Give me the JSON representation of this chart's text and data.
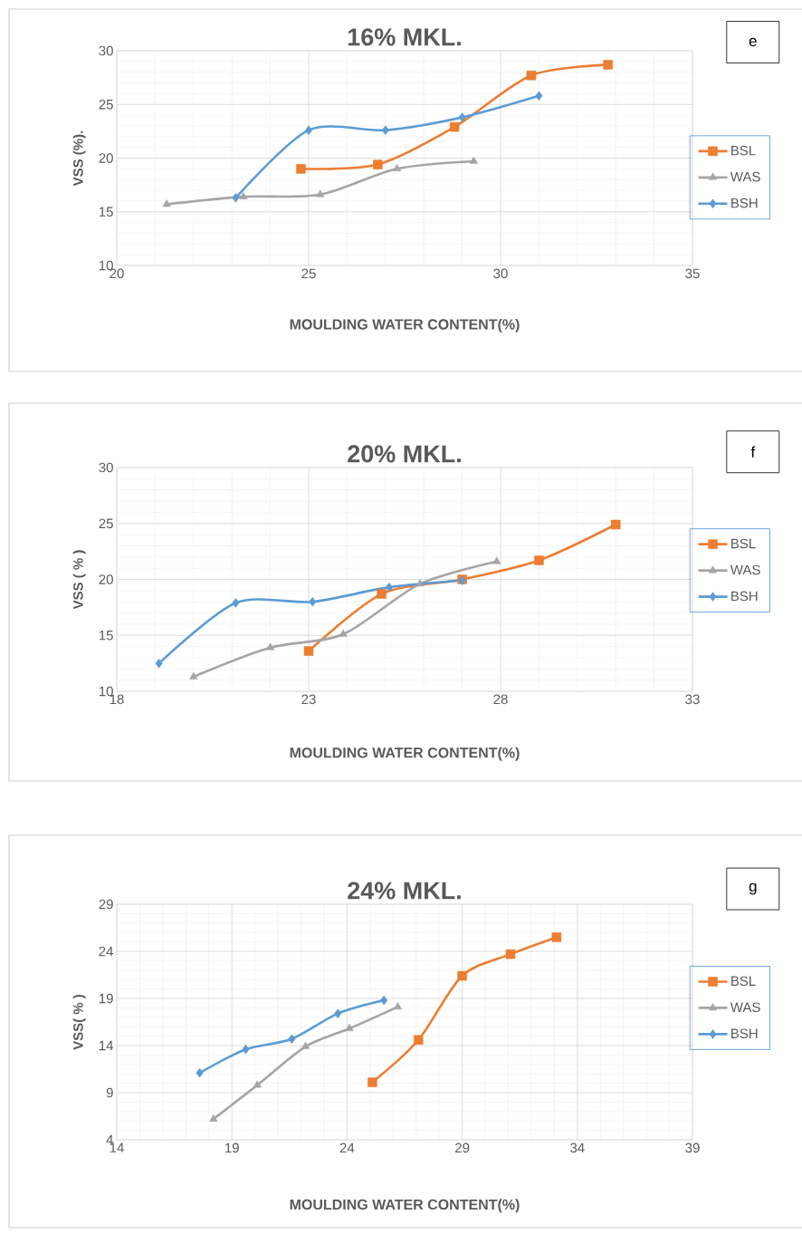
{
  "chart_data": [
    {
      "type": "line",
      "title": "16% MKL.",
      "xlabel": "MOULDING WATER CONTENT(%)",
      "ylabel": "VSS (%).",
      "annotations": [
        "e"
      ],
      "xlim": [
        20,
        35
      ],
      "xticks": [
        20,
        25,
        30,
        35
      ],
      "ylim": [
        10,
        30
      ],
      "yticks": [
        10,
        15,
        20,
        25,
        30
      ],
      "grid": true,
      "legend": "right",
      "line_style": "solid",
      "series": [
        {
          "name": "BSL",
          "color": "#ed7d31",
          "marker": "square",
          "x": [
            24.8,
            26.8,
            28.8,
            30.8,
            32.8
          ],
          "values": [
            19.0,
            19.4,
            22.9,
            27.7,
            28.7
          ]
        },
        {
          "name": "WAS",
          "color": "#a5a5a5",
          "marker": "triangle",
          "x": [
            21.3,
            23.3,
            25.3,
            27.3,
            29.3
          ],
          "values": [
            15.7,
            16.4,
            16.6,
            19.0,
            19.7
          ]
        },
        {
          "name": "BSH",
          "color": "#5b9bd5",
          "marker": "diamond",
          "x": [
            23.1,
            25.0,
            27.0,
            29.0,
            31.0
          ],
          "values": [
            16.3,
            22.6,
            22.6,
            23.8,
            25.8
          ]
        }
      ]
    },
    {
      "type": "line",
      "title": "20% MKL.",
      "xlabel": "MOULDING WATER CONTENT(%)",
      "ylabel": "VSS ( % )",
      "annotations": [
        "f"
      ],
      "xlim": [
        18,
        33
      ],
      "xticks": [
        18,
        23,
        28,
        33
      ],
      "ylim": [
        10,
        30
      ],
      "yticks": [
        10,
        15,
        20,
        25,
        30
      ],
      "grid": true,
      "legend": "right",
      "line_style": "solid",
      "series": [
        {
          "name": "BSL",
          "color": "#ed7d31",
          "marker": "square",
          "x": [
            23.0,
            24.9,
            27.0,
            29.0,
            31.0
          ],
          "values": [
            13.6,
            18.7,
            20.0,
            21.7,
            24.9
          ]
        },
        {
          "name": "WAS",
          "color": "#a5a5a5",
          "marker": "triangle",
          "x": [
            20.0,
            22.0,
            23.9,
            25.9,
            27.9
          ],
          "values": [
            11.3,
            13.9,
            15.1,
            19.6,
            21.6
          ]
        },
        {
          "name": "BSH",
          "color": "#5b9bd5",
          "marker": "diamond",
          "x": [
            19.1,
            21.1,
            23.1,
            25.1,
            27.0
          ],
          "values": [
            12.5,
            17.9,
            18.0,
            19.3,
            19.9
          ]
        }
      ]
    },
    {
      "type": "line",
      "title": "24% MKL.",
      "xlabel": "MOULDING WATER CONTENT(%)",
      "ylabel": "VSS( % )",
      "annotations": [
        "g"
      ],
      "xlim": [
        14,
        39
      ],
      "xticks": [
        14,
        19,
        24,
        29,
        34,
        39
      ],
      "ylim": [
        4,
        29
      ],
      "yticks": [
        4,
        9,
        14,
        19,
        24,
        29
      ],
      "grid": true,
      "legend": "right",
      "line_style": "solid",
      "series": [
        {
          "name": "BSL",
          "color": "#ed7d31",
          "marker": "square",
          "x": [
            25.1,
            27.1,
            29.0,
            31.1,
            33.1
          ],
          "values": [
            10.1,
            14.6,
            21.4,
            23.7,
            25.5
          ]
        },
        {
          "name": "WAS",
          "color": "#a5a5a5",
          "marker": "triangle",
          "x": [
            18.2,
            20.1,
            22.2,
            24.1,
            26.2
          ],
          "values": [
            6.2,
            9.8,
            13.9,
            15.8,
            18.1
          ]
        },
        {
          "name": "BSH",
          "color": "#5b9bd5",
          "marker": "diamond",
          "x": [
            17.6,
            19.6,
            21.6,
            23.6,
            25.6
          ],
          "values": [
            11.1,
            13.6,
            14.7,
            17.4,
            18.8
          ]
        }
      ]
    }
  ]
}
